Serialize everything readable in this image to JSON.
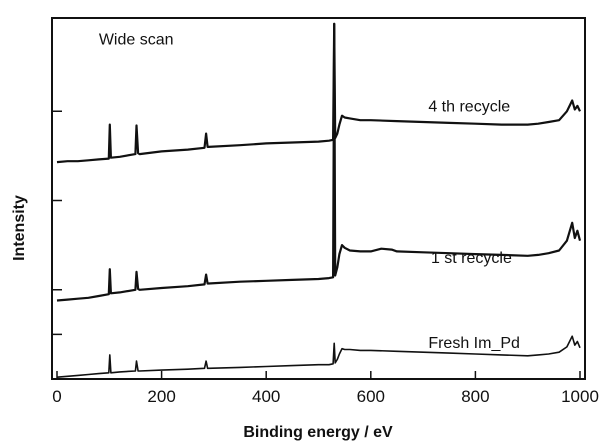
{
  "chart_data": {
    "type": "line",
    "title": "",
    "xlabel": "Binding energy / eV",
    "ylabel": "Intensity",
    "xlim": [
      0,
      1000
    ],
    "ylim": [
      0,
      4
    ],
    "xticks": [
      0,
      200,
      400,
      600,
      800,
      1000
    ],
    "grid": false,
    "annotations": [
      {
        "text": "Wide scan",
        "x": 80,
        "y": 3.75
      },
      {
        "text": "4 th recycle",
        "x": 710,
        "y": 3.0
      },
      {
        "text": "1 st recycle",
        "x": 715,
        "y": 1.3
      },
      {
        "text": "Fresh Im_Pd",
        "x": 710,
        "y": 0.35
      }
    ],
    "series": [
      {
        "name": "4 th recycle",
        "x": [
          0,
          20,
          40,
          60,
          80,
          99,
          101,
          103,
          120,
          150,
          152,
          155,
          158,
          200,
          250,
          282,
          285,
          288,
          290,
          350,
          400,
          450,
          500,
          520,
          528,
          530,
          532,
          536,
          540,
          545,
          550,
          560,
          580,
          600,
          650,
          700,
          750,
          800,
          850,
          900,
          920,
          940,
          960,
          975,
          985,
          990,
          995,
          1000
        ],
        "values": [
          2.43,
          2.44,
          2.44,
          2.45,
          2.46,
          2.47,
          2.85,
          2.48,
          2.49,
          2.52,
          2.84,
          2.53,
          2.52,
          2.55,
          2.57,
          2.59,
          2.75,
          2.6,
          2.6,
          2.62,
          2.64,
          2.65,
          2.66,
          2.67,
          2.68,
          3.98,
          2.7,
          2.75,
          2.85,
          2.95,
          2.93,
          2.92,
          2.9,
          2.9,
          2.89,
          2.88,
          2.87,
          2.86,
          2.85,
          2.85,
          2.86,
          2.88,
          2.9,
          3.0,
          3.12,
          3.02,
          3.06,
          3.0
        ]
      },
      {
        "name": "1 st recycle",
        "x": [
          0,
          20,
          40,
          60,
          80,
          99,
          101,
          103,
          120,
          150,
          152,
          155,
          158,
          200,
          250,
          282,
          285,
          288,
          290,
          350,
          400,
          450,
          500,
          520,
          528,
          530,
          532,
          536,
          540,
          545,
          550,
          560,
          580,
          600,
          620,
          640,
          650,
          700,
          750,
          800,
          850,
          900,
          920,
          940,
          960,
          975,
          985,
          990,
          995,
          1000
        ],
        "values": [
          0.88,
          0.89,
          0.9,
          0.91,
          0.93,
          0.95,
          1.23,
          0.96,
          0.97,
          1.0,
          1.2,
          1.01,
          1.0,
          1.02,
          1.04,
          1.06,
          1.17,
          1.07,
          1.07,
          1.09,
          1.1,
          1.11,
          1.12,
          1.13,
          1.14,
          3.98,
          1.16,
          1.25,
          1.4,
          1.5,
          1.47,
          1.44,
          1.43,
          1.43,
          1.46,
          1.45,
          1.43,
          1.42,
          1.41,
          1.4,
          1.39,
          1.38,
          1.39,
          1.41,
          1.44,
          1.55,
          1.75,
          1.58,
          1.66,
          1.55
        ]
      },
      {
        "name": "Fresh Im_Pd",
        "x": [
          0,
          20,
          40,
          60,
          80,
          99,
          101,
          103,
          120,
          150,
          152,
          155,
          158,
          200,
          250,
          282,
          285,
          288,
          290,
          350,
          400,
          450,
          500,
          520,
          528,
          530,
          532,
          536,
          540,
          545,
          550,
          560,
          580,
          600,
          650,
          700,
          750,
          800,
          850,
          900,
          920,
          940,
          960,
          975,
          985,
          990,
          995,
          1000
        ],
        "values": [
          0.02,
          0.03,
          0.04,
          0.05,
          0.06,
          0.07,
          0.27,
          0.07,
          0.08,
          0.09,
          0.2,
          0.09,
          0.09,
          0.1,
          0.11,
          0.12,
          0.2,
          0.12,
          0.12,
          0.13,
          0.14,
          0.15,
          0.16,
          0.16,
          0.17,
          0.4,
          0.18,
          0.22,
          0.28,
          0.34,
          0.33,
          0.33,
          0.32,
          0.32,
          0.31,
          0.3,
          0.29,
          0.28,
          0.27,
          0.26,
          0.27,
          0.28,
          0.3,
          0.36,
          0.48,
          0.38,
          0.42,
          0.35
        ]
      }
    ]
  }
}
